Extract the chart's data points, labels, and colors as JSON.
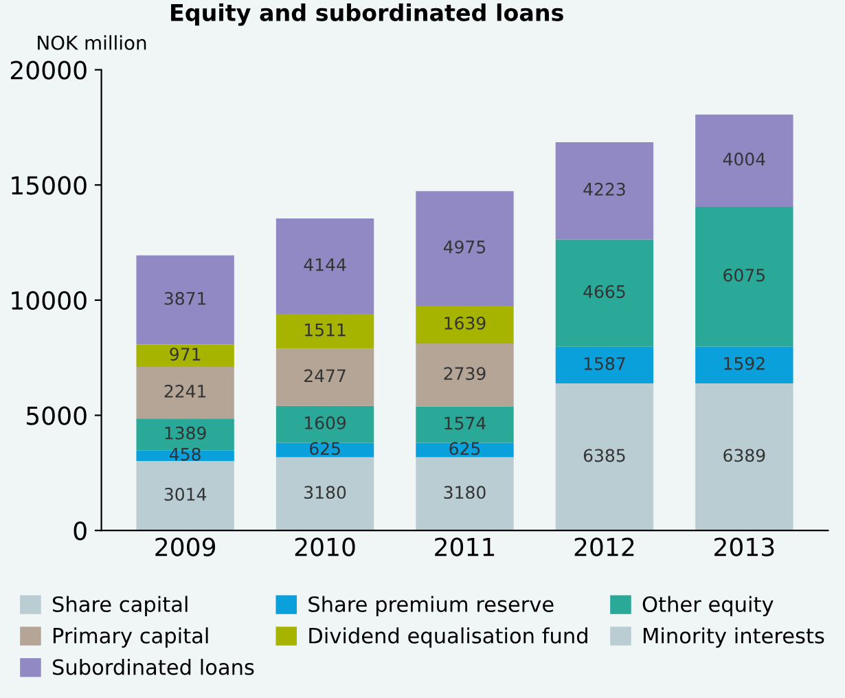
{
  "chart_data": {
    "type": "bar",
    "stacked": true,
    "title": "Equity and subordinated loans",
    "ylabel": "NOK million",
    "categories": [
      "2009",
      "2010",
      "2011",
      "2012",
      "2013"
    ],
    "series": [
      {
        "name": "Share capital",
        "color": "#b9cdd3",
        "values": [
          3014,
          3180,
          3180,
          6385,
          6389
        ]
      },
      {
        "name": "Share premium reserve",
        "color": "#0aa0dc",
        "values": [
          458,
          625,
          625,
          1587,
          1592
        ]
      },
      {
        "name": "Other equity",
        "color": "#2aa898",
        "values": [
          1389,
          1609,
          1574,
          4665,
          6075
        ]
      },
      {
        "name": "Primary capital",
        "color": "#b5a597",
        "values": [
          2241,
          2477,
          2739,
          null,
          null
        ]
      },
      {
        "name": "Dividend equalisation fund",
        "color": "#a6b400",
        "values": [
          971,
          1511,
          1639,
          null,
          null
        ]
      },
      {
        "name": "Subordinated loans",
        "color": "#9089c4",
        "values": [
          3871,
          4144,
          4975,
          4223,
          4004
        ]
      },
      {
        "name": "Minority interests",
        "color": "#b9cdd3",
        "values": [
          null,
          null,
          null,
          null,
          null
        ]
      }
    ],
    "ylim": [
      0,
      20000
    ],
    "yticks": [
      0,
      5000,
      10000,
      15000,
      20000
    ],
    "data_labels": true,
    "legend": "bottom",
    "grid": false
  }
}
